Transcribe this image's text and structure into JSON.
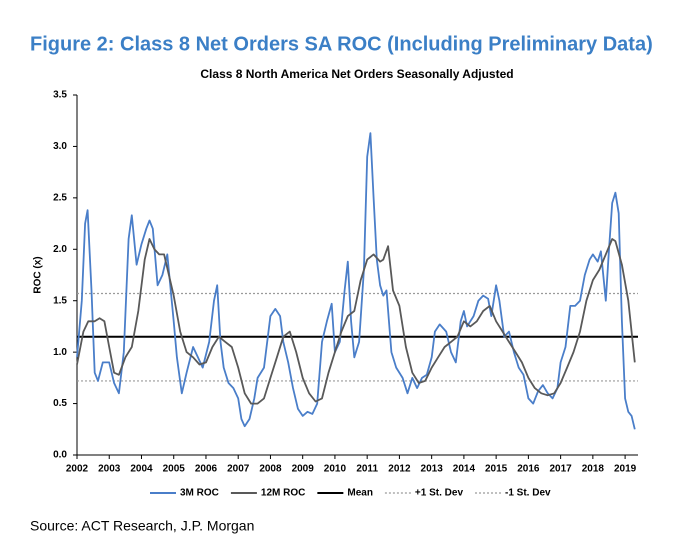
{
  "chart_data": {
    "type": "line",
    "title": "Figure 2: Class 8 Net Orders SA ROC (Including Preliminary Data)",
    "subtitle": "Class 8 North America Net Orders Seasonally Adjusted",
    "y_label": "ROC (x)",
    "source": "Source: ACT Research, J.P. Morgan",
    "xlim": [
      2002,
      2019.4
    ],
    "xticks": [
      2002,
      2003,
      2004,
      2005,
      2006,
      2007,
      2008,
      2009,
      2010,
      2011,
      2012,
      2013,
      2014,
      2015,
      2016,
      2017,
      2018,
      2019
    ],
    "ylim": [
      0,
      3.5
    ],
    "yticks": [
      {
        "value": 0,
        "label": "0.0"
      },
      0.5,
      {
        "value": 1,
        "label": "1.0"
      },
      1.5,
      {
        "value": 2,
        "label": "2.0"
      },
      2.5,
      {
        "value": 3,
        "label": "3.0"
      },
      3.5
    ],
    "grid": false,
    "legend": "bottom",
    "series": [
      {
        "name": "3M ROC",
        "color": "#4a7ec9",
        "x": [
          2002.0,
          2002.15,
          2002.25,
          2002.33,
          2002.45,
          2002.55,
          2002.65,
          2002.8,
          2003.0,
          2003.15,
          2003.3,
          2003.45,
          2003.6,
          2003.7,
          2003.85,
          2004.0,
          2004.15,
          2004.25,
          2004.35,
          2004.5,
          2004.65,
          2004.8,
          2005.0,
          2005.1,
          2005.25,
          2005.4,
          2005.6,
          2005.75,
          2005.9,
          2006.1,
          2006.25,
          2006.35,
          2006.45,
          2006.55,
          2006.7,
          2006.85,
          2007.0,
          2007.1,
          2007.2,
          2007.35,
          2007.5,
          2007.6,
          2007.8,
          2008.0,
          2008.15,
          2008.3,
          2008.4,
          2008.55,
          2008.7,
          2008.85,
          2009.0,
          2009.15,
          2009.3,
          2009.45,
          2009.6,
          2009.75,
          2009.9,
          2010.0,
          2010.15,
          2010.3,
          2010.4,
          2010.5,
          2010.6,
          2010.75,
          2010.9,
          2011.0,
          2011.1,
          2011.2,
          2011.3,
          2011.4,
          2011.5,
          2011.6,
          2011.75,
          2011.9,
          2012.1,
          2012.25,
          2012.4,
          2012.55,
          2012.7,
          2012.85,
          2013.0,
          2013.1,
          2013.25,
          2013.45,
          2013.6,
          2013.75,
          2013.9,
          2014.0,
          2014.1,
          2014.3,
          2014.45,
          2014.6,
          2014.75,
          2014.85,
          2015.0,
          2015.1,
          2015.25,
          2015.4,
          2015.55,
          2015.7,
          2015.85,
          2016.0,
          2016.15,
          2016.3,
          2016.45,
          2016.6,
          2016.75,
          2016.9,
          2017.0,
          2017.15,
          2017.3,
          2017.45,
          2017.6,
          2017.75,
          2017.9,
          2018.0,
          2018.15,
          2018.25,
          2018.4,
          2018.5,
          2018.6,
          2018.7,
          2018.8,
          2018.9,
          2019.0,
          2019.1,
          2019.2,
          2019.3
        ],
        "values": [
          0.95,
          1.5,
          2.25,
          2.38,
          1.6,
          0.8,
          0.72,
          0.9,
          0.9,
          0.7,
          0.6,
          1.0,
          2.1,
          2.33,
          1.85,
          2.05,
          2.2,
          2.28,
          2.2,
          1.65,
          1.75,
          1.95,
          1.3,
          0.95,
          0.6,
          0.8,
          1.05,
          0.95,
          0.85,
          1.1,
          1.5,
          1.65,
          1.1,
          0.85,
          0.7,
          0.65,
          0.55,
          0.35,
          0.28,
          0.35,
          0.55,
          0.75,
          0.85,
          1.35,
          1.42,
          1.35,
          1.1,
          0.9,
          0.65,
          0.45,
          0.38,
          0.42,
          0.4,
          0.5,
          1.1,
          1.3,
          1.47,
          1.0,
          1.1,
          1.6,
          1.88,
          1.3,
          0.95,
          1.1,
          1.8,
          2.9,
          3.13,
          2.5,
          1.9,
          1.65,
          1.55,
          1.6,
          1.0,
          0.85,
          0.75,
          0.6,
          0.75,
          0.65,
          0.75,
          0.78,
          0.95,
          1.2,
          1.27,
          1.2,
          1.0,
          0.9,
          1.3,
          1.4,
          1.25,
          1.35,
          1.5,
          1.55,
          1.52,
          1.35,
          1.65,
          1.5,
          1.15,
          1.2,
          1.0,
          0.85,
          0.78,
          0.55,
          0.5,
          0.62,
          0.68,
          0.6,
          0.55,
          0.65,
          0.9,
          1.05,
          1.45,
          1.45,
          1.5,
          1.75,
          1.9,
          1.95,
          1.88,
          1.98,
          1.5,
          2.0,
          2.45,
          2.55,
          2.35,
          1.3,
          0.55,
          0.42,
          0.38,
          0.25
        ]
      },
      {
        "name": "12M ROC",
        "color": "#595959",
        "x": [
          2002.0,
          2002.2,
          2002.35,
          2002.55,
          2002.7,
          2002.85,
          2003.0,
          2003.15,
          2003.3,
          2003.5,
          2003.7,
          2003.9,
          2004.1,
          2004.25,
          2004.4,
          2004.55,
          2004.7,
          2004.85,
          2005.0,
          2005.2,
          2005.4,
          2005.6,
          2005.8,
          2006.0,
          2006.2,
          2006.4,
          2006.6,
          2006.8,
          2007.0,
          2007.2,
          2007.4,
          2007.6,
          2007.8,
          2008.0,
          2008.2,
          2008.4,
          2008.6,
          2008.8,
          2009.0,
          2009.2,
          2009.4,
          2009.6,
          2009.8,
          2010.0,
          2010.2,
          2010.4,
          2010.6,
          2010.8,
          2011.0,
          2011.2,
          2011.4,
          2011.5,
          2011.65,
          2011.8,
          2012.0,
          2012.2,
          2012.4,
          2012.6,
          2012.8,
          2013.0,
          2013.2,
          2013.4,
          2013.6,
          2013.8,
          2014.0,
          2014.2,
          2014.4,
          2014.6,
          2014.8,
          2015.0,
          2015.2,
          2015.4,
          2015.6,
          2015.8,
          2016.0,
          2016.2,
          2016.4,
          2016.6,
          2016.8,
          2017.0,
          2017.2,
          2017.4,
          2017.6,
          2017.8,
          2018.0,
          2018.2,
          2018.4,
          2018.6,
          2018.7,
          2018.9,
          2019.1,
          2019.3
        ],
        "values": [
          0.88,
          1.2,
          1.3,
          1.3,
          1.33,
          1.3,
          1.05,
          0.8,
          0.78,
          0.95,
          1.05,
          1.4,
          1.9,
          2.1,
          2.0,
          1.95,
          1.95,
          1.75,
          1.55,
          1.2,
          1.0,
          0.95,
          0.88,
          0.9,
          1.05,
          1.15,
          1.1,
          1.05,
          0.85,
          0.6,
          0.5,
          0.5,
          0.55,
          0.75,
          0.95,
          1.15,
          1.2,
          1.0,
          0.75,
          0.6,
          0.52,
          0.55,
          0.8,
          1.0,
          1.2,
          1.35,
          1.4,
          1.7,
          1.9,
          1.95,
          1.88,
          1.9,
          2.03,
          1.6,
          1.45,
          1.05,
          0.8,
          0.7,
          0.72,
          0.85,
          0.95,
          1.05,
          1.1,
          1.15,
          1.3,
          1.25,
          1.3,
          1.4,
          1.45,
          1.3,
          1.2,
          1.1,
          1.0,
          0.9,
          0.75,
          0.65,
          0.6,
          0.58,
          0.6,
          0.7,
          0.85,
          1.0,
          1.2,
          1.5,
          1.7,
          1.8,
          1.95,
          2.1,
          2.08,
          1.85,
          1.5,
          0.9
        ]
      }
    ],
    "reference_lines": [
      {
        "name": "Mean",
        "value": 1.15,
        "color": "#000000",
        "style": "solid"
      },
      {
        "name": "+1 St. Dev",
        "value": 1.57,
        "color": "#9a9a9a",
        "style": "dotted"
      },
      {
        "name": "-1 St. Dev",
        "value": 0.72,
        "color": "#9a9a9a",
        "style": "dotted"
      }
    ]
  }
}
